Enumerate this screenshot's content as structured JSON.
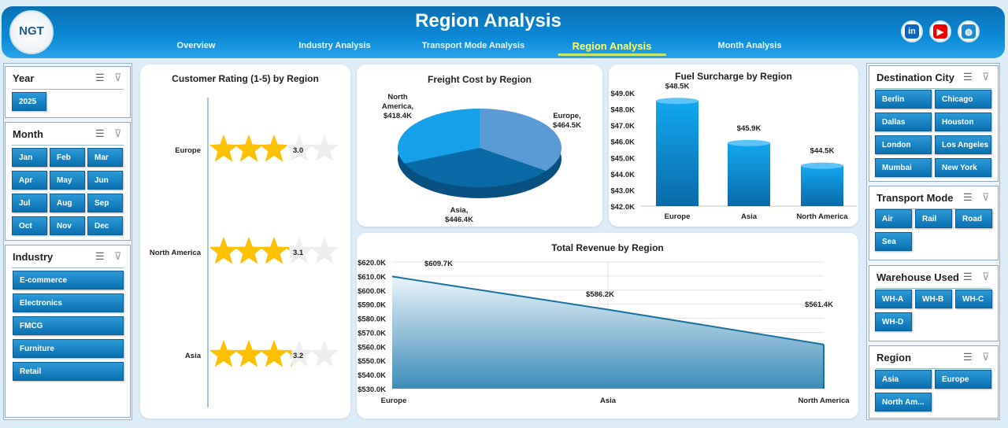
{
  "header": {
    "logo_text": "NGT",
    "title": "Region Analysis",
    "nav": [
      {
        "label": "Overview"
      },
      {
        "label": "Industry Analysis"
      },
      {
        "label": "Transport Mode Analysis"
      },
      {
        "label": "Region Analysis",
        "active": true
      },
      {
        "label": "Month Analysis"
      }
    ],
    "social": [
      {
        "icon": "linkedin-icon",
        "label": "in",
        "color": "#0a66c2"
      },
      {
        "icon": "youtube-icon",
        "label": "▶",
        "color": "#e00"
      },
      {
        "icon": "globe-icon",
        "label": "◍",
        "color": "#1a8ad0"
      }
    ]
  },
  "slicers_left": [
    {
      "title": "Year",
      "items": [
        "2025"
      ]
    },
    {
      "title": "Month",
      "items": [
        "Jan",
        "Feb",
        "Mar",
        "Apr",
        "May",
        "Jun",
        "Jul",
        "Aug",
        "Sep",
        "Oct",
        "Nov",
        "Dec"
      ]
    },
    {
      "title": "Industry",
      "items": [
        "E-commerce",
        "Electronics",
        "FMCG",
        "Furniture",
        "Retail"
      ]
    }
  ],
  "slicers_right": [
    {
      "title": "Destination City",
      "items": [
        "Berlin",
        "Chicago",
        "Dallas",
        "Houston",
        "London",
        "Los Angeles",
        "Mumbai",
        "New York"
      ]
    },
    {
      "title": "Transport Mode",
      "items": [
        "Air",
        "Rail",
        "Road",
        "Sea"
      ]
    },
    {
      "title": "Warehouse Used",
      "items": [
        "WH-A",
        "WH-B",
        "WH-C",
        "WH-D"
      ]
    },
    {
      "title": "Region",
      "items": [
        "Asia",
        "Europe",
        "North Am..."
      ]
    }
  ],
  "colors": {
    "accent": "#0a7cc4",
    "star": "#ffc000",
    "active_nav": "#ffff66"
  },
  "chart_data": [
    {
      "type": "bar",
      "subtype": "star-rating",
      "title": "Customer Rating (1-5) by Region",
      "categories": [
        "Europe",
        "North America",
        "Asia"
      ],
      "values": [
        3.0,
        3.1,
        3.2
      ],
      "labels": [
        "3.0",
        "3.1",
        "3.2"
      ],
      "max": 5
    },
    {
      "type": "pie",
      "title": "Freight Cost by Region",
      "categories": [
        "Europe",
        "Asia",
        "North America"
      ],
      "values": [
        464.5,
        446.4,
        418.4
      ],
      "labels": [
        "Europe,",
        "Asia,",
        "North America,"
      ],
      "value_labels": [
        "$464.5K",
        "$446.4K",
        "$418.4K"
      ],
      "colors": [
        "#5b9bd5",
        "#0a6aa6",
        "#15a0ea"
      ]
    },
    {
      "type": "bar",
      "title": "Fuel Surcharge by Region",
      "categories": [
        "Europe",
        "Asia",
        "North America"
      ],
      "values": [
        48.5,
        45.9,
        44.5
      ],
      "value_labels": [
        "$48.5K",
        "$45.9K",
        "$44.5K"
      ],
      "ylim": [
        42,
        49
      ],
      "yticks": [
        "$42.0K",
        "$43.0K",
        "$44.0K",
        "$45.0K",
        "$46.0K",
        "$47.0K",
        "$48.0K",
        "$49.0K"
      ]
    },
    {
      "type": "area",
      "title": "Total Revenue by Region",
      "categories": [
        "Europe",
        "Asia",
        "North America"
      ],
      "values": [
        609.7,
        586.2,
        561.4
      ],
      "value_labels": [
        "$609.7K",
        "$586.2K",
        "$561.4K"
      ],
      "ylim": [
        530,
        620
      ],
      "grid": true,
      "yticks": [
        "$530.0K",
        "$540.0K",
        "$550.0K",
        "$560.0K",
        "$570.0K",
        "$580.0K",
        "$590.0K",
        "$600.0K",
        "$610.0K",
        "$620.0K"
      ]
    }
  ]
}
